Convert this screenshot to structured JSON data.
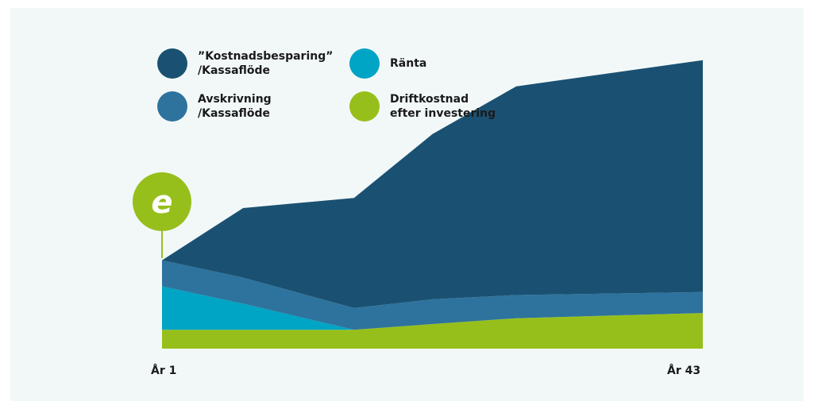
{
  "chart_data": {
    "type": "area",
    "stacked": true,
    "x": [
      "År 1",
      "",
      "",
      "",
      "",
      "År 43"
    ],
    "x_tick_labels": [
      "År 1",
      "År 43"
    ],
    "ylim": [
      0,
      100
    ],
    "grid": false,
    "legend_position": "top-left",
    "marker_letter": "e",
    "series": [
      {
        "name": "Driftkostnad\nefter investering",
        "color": "#97bf1b",
        "values": [
          6.5,
          6.5,
          6.5,
          8.5,
          10.5,
          12.3
        ]
      },
      {
        "name": "Ränta",
        "color": "#00a4c4",
        "values": [
          15,
          9,
          0,
          0,
          0,
          0
        ]
      },
      {
        "name": "Avskrivning\n/Kassaflöde",
        "color": "#2d739d",
        "values": [
          9,
          9,
          7.5,
          8.5,
          8.0,
          7.2
        ]
      },
      {
        "name": "”Kostnadsbesparing”\n/Kassaflöde",
        "color": "#1a5172",
        "values": [
          0,
          24,
          38,
          57,
          72,
          80
        ]
      }
    ],
    "x_positions": [
      0,
      0.15,
      0.355,
      0.5,
      0.655,
      1
    ]
  },
  "legend": [
    {
      "label": "”Kostnadsbesparing”\n/Kassaflöde",
      "color": "#1a5172"
    },
    {
      "label": "Ränta",
      "color": "#00a4c4"
    },
    {
      "label": "Avskrivning\n/Kassaflöde",
      "color": "#2d739d"
    },
    {
      "label": "Driftkostnad\nefter investering",
      "color": "#97bf1b"
    }
  ],
  "colors": {
    "panel_background": "#f2f8f8",
    "marker": "#97bf1b"
  }
}
